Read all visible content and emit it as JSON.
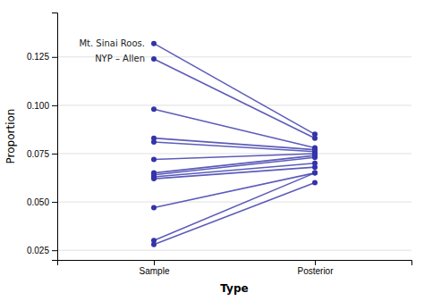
{
  "chart_data": {
    "type": "slope",
    "categories": [
      "Sample",
      "Posterior"
    ],
    "series": [
      {
        "values": [
          0.132,
          0.085
        ]
      },
      {
        "values": [
          0.124,
          0.083
        ]
      },
      {
        "values": [
          0.098,
          0.078
        ]
      },
      {
        "values": [
          0.083,
          0.077
        ]
      },
      {
        "values": [
          0.081,
          0.076
        ]
      },
      {
        "values": [
          0.072,
          0.075
        ]
      },
      {
        "values": [
          0.065,
          0.074
        ]
      },
      {
        "values": [
          0.064,
          0.073
        ]
      },
      {
        "values": [
          0.063,
          0.07
        ]
      },
      {
        "values": [
          0.062,
          0.068
        ]
      },
      {
        "values": [
          0.047,
          0.065
        ]
      },
      {
        "values": [
          0.03,
          0.065
        ]
      },
      {
        "values": [
          0.028,
          0.06
        ]
      }
    ],
    "annotations": [
      {
        "text": "Mt. Sinai Roos.",
        "x": "Sample",
        "y": 0.132
      },
      {
        "text": "NYP – Allen",
        "x": "Sample",
        "y": 0.124
      }
    ],
    "color": "#3333AA",
    "xlabel": "Type",
    "ylabel": "Proportion",
    "ylim": [
      0.02,
      0.148
    ],
    "yticks": [
      0.025,
      {
        "value": 0.05,
        "label": "0.050"
      },
      0.075,
      {
        "value": 0.1,
        "label": "0.100"
      },
      0.125
    ],
    "grid": true
  }
}
